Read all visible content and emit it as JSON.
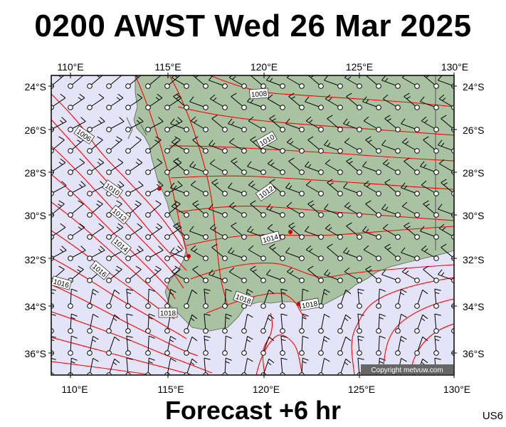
{
  "header": {
    "title": "0200 AWST Wed 26 Mar 2025"
  },
  "footer": {
    "forecast": "Forecast +6 hr",
    "code": "US6"
  },
  "map": {
    "lon_ticks": [
      "110°E",
      "115°E",
      "120°E",
      "125°E",
      "130°E"
    ],
    "lat_ticks": [
      "24°S",
      "26°S",
      "28°S",
      "30°S",
      "32°S",
      "34°S",
      "36°S"
    ],
    "isobar_labels": [
      "1006",
      "1008",
      "1010",
      "1010",
      "1012",
      "1012",
      "1014",
      "1014",
      "1016",
      "1016",
      "1018",
      "1018",
      "1018"
    ],
    "copyright": "Copyright metvuw.com",
    "colors": {
      "sea": "#e4e4f8",
      "land": "#a9c3a2",
      "isobar": "#ff0000",
      "frame": "#000000",
      "station": "#cc0000"
    }
  }
}
